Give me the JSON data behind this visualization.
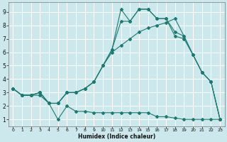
{
  "xlabel": "Humidex (Indice chaleur)",
  "bg_color": "#cde8ec",
  "grid_color": "#ffffff",
  "line_color": "#1e7a70",
  "series1_x": [
    0,
    1,
    2,
    3,
    4,
    5,
    6,
    7,
    8,
    9,
    10,
    11,
    12,
    13,
    14,
    15,
    16,
    17,
    18,
    19,
    20,
    21,
    22,
    23
  ],
  "series1_y": [
    3.3,
    2.8,
    2.8,
    2.8,
    2.2,
    1.0,
    2.0,
    1.6,
    1.6,
    1.5,
    1.5,
    1.5,
    1.5,
    1.5,
    1.5,
    1.5,
    1.2,
    1.2,
    1.1,
    1.0,
    1.0,
    1.0,
    1.0,
    1.0
  ],
  "series2_x": [
    0,
    1,
    2,
    3,
    4,
    5,
    6,
    7,
    8,
    9,
    10,
    11,
    12,
    13,
    14,
    15,
    16,
    17,
    18,
    19,
    20,
    21,
    22,
    23
  ],
  "series2_y": [
    3.3,
    2.8,
    2.8,
    3.0,
    2.2,
    2.2,
    3.0,
    3.0,
    3.3,
    3.8,
    5.0,
    6.2,
    9.2,
    8.3,
    9.2,
    9.2,
    8.5,
    8.5,
    7.5,
    7.2,
    5.8,
    4.5,
    3.8,
    1.0
  ],
  "series3_x": [
    0,
    1,
    2,
    3,
    4,
    5,
    6,
    7,
    8,
    9,
    10,
    11,
    12,
    13,
    14,
    15,
    16,
    17,
    18,
    19,
    20,
    21,
    22,
    23
  ],
  "series3_y": [
    3.3,
    2.8,
    2.8,
    3.0,
    2.2,
    2.2,
    3.0,
    3.0,
    3.3,
    3.8,
    5.0,
    6.2,
    8.3,
    8.3,
    9.2,
    9.2,
    8.5,
    8.5,
    7.2,
    7.0,
    5.8,
    4.5,
    3.8,
    1.0
  ],
  "series4_x": [
    0,
    1,
    2,
    3,
    4,
    5,
    6,
    7,
    8,
    9,
    10,
    11,
    12,
    13,
    14,
    15,
    16,
    17,
    18,
    19,
    20,
    21,
    22,
    23
  ],
  "series4_y": [
    3.3,
    2.8,
    2.8,
    3.0,
    2.2,
    2.2,
    3.0,
    3.0,
    3.3,
    3.8,
    5.0,
    6.0,
    6.5,
    7.0,
    7.5,
    7.8,
    8.0,
    8.2,
    8.5,
    7.2,
    5.8,
    4.5,
    3.8,
    1.0
  ],
  "xlim": [
    -0.5,
    23.5
  ],
  "ylim": [
    0.5,
    9.7
  ],
  "xticks": [
    0,
    1,
    2,
    3,
    4,
    5,
    6,
    7,
    8,
    9,
    10,
    11,
    12,
    13,
    14,
    15,
    16,
    17,
    18,
    19,
    20,
    21,
    22,
    23
  ],
  "yticks": [
    1,
    2,
    3,
    4,
    5,
    6,
    7,
    8,
    9
  ]
}
